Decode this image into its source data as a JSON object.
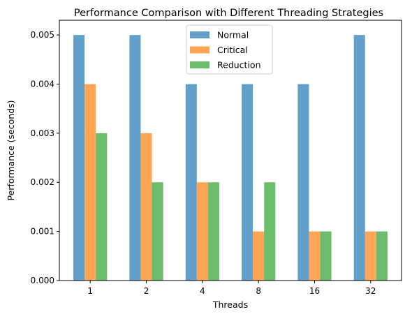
{
  "chart_data": {
    "type": "bar",
    "title": "Performance Comparison with Different Threading Strategies",
    "xlabel": "Threads",
    "ylabel": "Performance (seconds)",
    "categories": [
      "1",
      "2",
      "4",
      "8",
      "16",
      "32"
    ],
    "ylim": [
      0,
      0.0053
    ],
    "yticks": [
      "0.000",
      "0.001",
      "0.002",
      "0.003",
      "0.004",
      "0.005"
    ],
    "series": [
      {
        "name": "Normal",
        "color": "#1f77b4",
        "values": [
          0.005,
          0.005,
          0.004,
          0.004,
          0.004,
          0.005
        ]
      },
      {
        "name": "Critical",
        "color": "#ff7f0e",
        "values": [
          0.004,
          0.003,
          0.002,
          0.001,
          0.001,
          0.001
        ]
      },
      {
        "name": "Reduction",
        "color": "#2ca02c",
        "values": [
          0.003,
          0.002,
          0.002,
          0.002,
          0.001,
          0.001
        ]
      }
    ],
    "bar_alpha": 0.7,
    "grid": false,
    "legend_position": "top-center"
  }
}
